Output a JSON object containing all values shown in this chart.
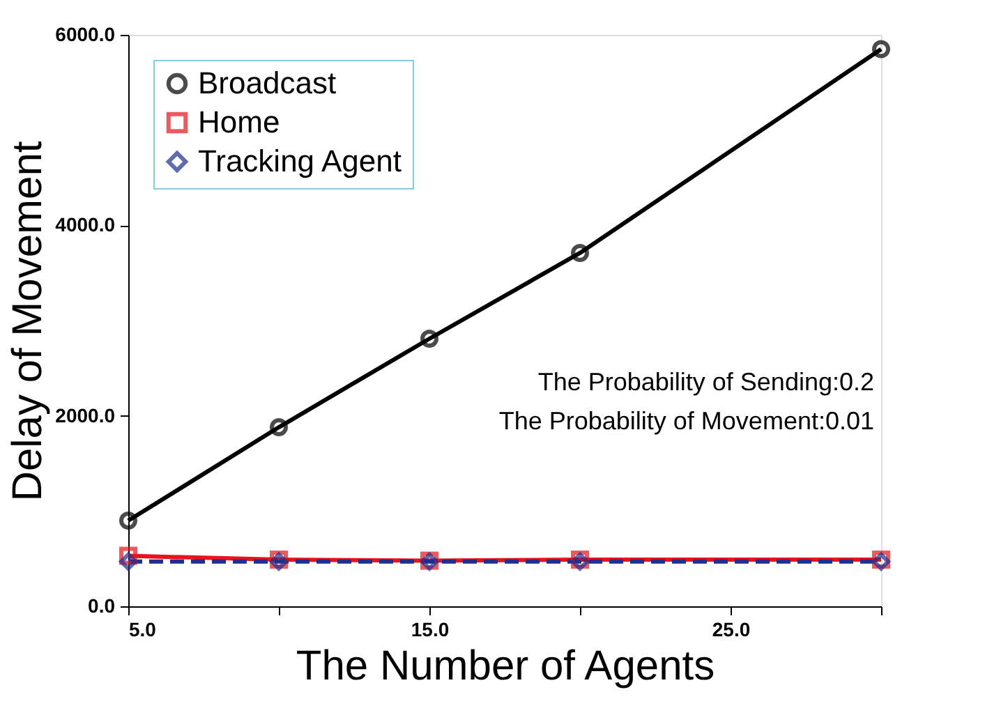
{
  "chart_data": {
    "type": "line",
    "xlabel": "The Number of Agents",
    "ylabel": "Delay of Movement",
    "x": [
      5,
      10,
      15,
      20,
      25,
      30
    ],
    "series": [
      {
        "name": "Broadcast",
        "color": "#000000",
        "marker": "circle",
        "line_style": "solid",
        "values": [
          900,
          1880,
          2810,
          3710,
          null,
          5850
        ]
      },
      {
        "name": "Home",
        "color": "#e8141b",
        "marker": "square",
        "line_style": "solid",
        "values": [
          530,
          490,
          480,
          490,
          null,
          490
        ]
      },
      {
        "name": "Tracking Agent",
        "color": "#1f2f8f",
        "marker": "diamond",
        "line_style": "dashed",
        "values": [
          470,
          470,
          470,
          470,
          null,
          470
        ]
      }
    ],
    "xlim": [
      5,
      30
    ],
    "ylim": [
      0,
      6000
    ],
    "xticks": [
      {
        "value": 5,
        "label": "5.0"
      },
      {
        "value": 10,
        "label": null
      },
      {
        "value": 15,
        "label": "15.0"
      },
      {
        "value": 20,
        "label": null
      },
      {
        "value": 25,
        "label": "25.0"
      },
      {
        "value": 30,
        "label": null
      }
    ],
    "yticks": [
      {
        "value": 0,
        "label": "0.0"
      },
      {
        "value": 2000,
        "label": "2000.0"
      },
      {
        "value": 4000,
        "label": "4000.0"
      },
      {
        "value": 6000,
        "label": "6000.0"
      }
    ],
    "annotations": [
      "The Probability of Sending:0.2",
      "The Probability of Movement:0.01"
    ],
    "legend": "top left",
    "grid": false
  }
}
